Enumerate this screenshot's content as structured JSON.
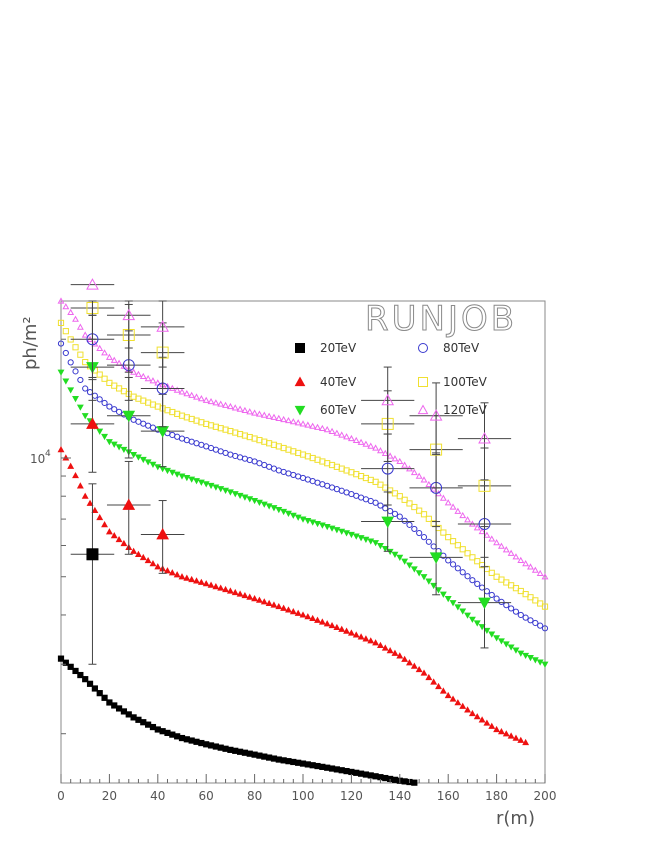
{
  "chart_data": {
    "type": "scatter",
    "title": "RUNJOB",
    "xlabel": "r(m)",
    "ylabel": "ph/m²",
    "xlim": [
      0,
      200
    ],
    "ylim": [
      1500,
      25000
    ],
    "ylog": true,
    "xticks": [
      0,
      20,
      40,
      60,
      80,
      100,
      120,
      140,
      160,
      180,
      200
    ],
    "ytick_label": {
      "base": "10",
      "exp": "4"
    },
    "legend": [
      {
        "name": "20TeV",
        "marker": "square-filled",
        "color": "#000000"
      },
      {
        "name": "80TeV",
        "marker": "circle-open",
        "color": "#3a3acf"
      },
      {
        "name": "40TeV",
        "marker": "triangle-up-filled",
        "color": "#ee1111"
      },
      {
        "name": "100TeV",
        "marker": "square-open",
        "color": "#f0e030"
      },
      {
        "name": "60TeV",
        "marker": "triangle-down-filled",
        "color": "#22dd22"
      },
      {
        "name": "120TeV",
        "marker": "triangle-up-open",
        "color": "#ee66ee"
      }
    ],
    "series": [
      {
        "name": "20TeV",
        "curve": [
          [
            0,
            3100
          ],
          [
            10,
            2750
          ],
          [
            20,
            2400
          ],
          [
            30,
            2200
          ],
          [
            40,
            2050
          ],
          [
            50,
            1950
          ],
          [
            60,
            1880
          ],
          [
            70,
            1820
          ],
          [
            80,
            1770
          ],
          [
            90,
            1720
          ],
          [
            100,
            1680
          ],
          [
            110,
            1640
          ],
          [
            120,
            1600
          ],
          [
            130,
            1560
          ],
          [
            140,
            1520
          ],
          [
            147,
            1500
          ]
        ],
        "curve_end": 147,
        "points": [
          {
            "x": 13,
            "y": 5700,
            "xerr": 9,
            "ylo": 3000,
            "yhi": 8600
          }
        ]
      },
      {
        "name": "40TeV",
        "curve": [
          [
            0,
            10500
          ],
          [
            5,
            9300
          ],
          [
            10,
            8000
          ],
          [
            20,
            6500
          ],
          [
            30,
            5800
          ],
          [
            40,
            5300
          ],
          [
            50,
            5000
          ],
          [
            60,
            4800
          ],
          [
            70,
            4600
          ],
          [
            80,
            4400
          ],
          [
            90,
            4200
          ],
          [
            100,
            4000
          ],
          [
            110,
            3800
          ],
          [
            120,
            3600
          ],
          [
            130,
            3400
          ],
          [
            140,
            3150
          ],
          [
            150,
            2850
          ],
          [
            160,
            2500
          ],
          [
            170,
            2250
          ],
          [
            180,
            2050
          ],
          [
            192,
            1900
          ]
        ],
        "curve_end": 192,
        "points": [
          {
            "x": 13,
            "y": 12200,
            "xerr": 9,
            "ylo": 9200,
            "yhi": 15800
          },
          {
            "x": 28,
            "y": 7600,
            "xerr": 9,
            "ylo": 5700,
            "yhi": 9800
          },
          {
            "x": 42,
            "y": 6400,
            "xerr": 9,
            "ylo": 5100,
            "yhi": 7800
          }
        ]
      },
      {
        "name": "60TeV",
        "curve": [
          [
            0,
            16500
          ],
          [
            5,
            14500
          ],
          [
            10,
            12800
          ],
          [
            20,
            11000
          ],
          [
            30,
            10200
          ],
          [
            40,
            9500
          ],
          [
            50,
            9000
          ],
          [
            60,
            8600
          ],
          [
            70,
            8200
          ],
          [
            80,
            7800
          ],
          [
            90,
            7400
          ],
          [
            100,
            7000
          ],
          [
            110,
            6700
          ],
          [
            120,
            6400
          ],
          [
            130,
            6100
          ],
          [
            140,
            5600
          ],
          [
            150,
            5000
          ],
          [
            160,
            4400
          ],
          [
            170,
            3900
          ],
          [
            180,
            3500
          ],
          [
            190,
            3200
          ],
          [
            200,
            3000
          ]
        ],
        "curve_end": 200,
        "points": [
          {
            "x": 13,
            "y": 17000,
            "xerr": 9,
            "ylo": 14000,
            "yhi": 23000
          },
          {
            "x": 28,
            "y": 12800,
            "xerr": 9,
            "ylo": 10000,
            "yhi": 16000
          },
          {
            "x": 42,
            "y": 11700,
            "xerr": 9,
            "ylo": 9500,
            "yhi": 14500
          },
          {
            "x": 135,
            "y": 6900,
            "xerr": 11,
            "ylo": 5800,
            "yhi": 8200
          },
          {
            "x": 155,
            "y": 5600,
            "xerr": 11,
            "ylo": 4500,
            "yhi": 6900
          },
          {
            "x": 175,
            "y": 4300,
            "xerr": 11,
            "ylo": 3300,
            "yhi": 5600
          }
        ]
      },
      {
        "name": "80TeV",
        "curve": [
          [
            0,
            19500
          ],
          [
            5,
            17000
          ],
          [
            10,
            15000
          ],
          [
            20,
            13500
          ],
          [
            30,
            12500
          ],
          [
            40,
            11800
          ],
          [
            50,
            11200
          ],
          [
            60,
            10700
          ],
          [
            70,
            10200
          ],
          [
            80,
            9800
          ],
          [
            90,
            9300
          ],
          [
            100,
            8900
          ],
          [
            110,
            8500
          ],
          [
            120,
            8100
          ],
          [
            130,
            7700
          ],
          [
            140,
            7100
          ],
          [
            150,
            6300
          ],
          [
            160,
            5500
          ],
          [
            170,
            4900
          ],
          [
            180,
            4400
          ],
          [
            190,
            4000
          ],
          [
            200,
            3700
          ]
        ],
        "curve_end": 200,
        "points": [
          {
            "x": 13,
            "y": 20000,
            "xerr": 9,
            "ylo": 16000,
            "yhi": 24000
          },
          {
            "x": 28,
            "y": 17200,
            "xerr": 9,
            "ylo": 14000,
            "yhi": 21000
          },
          {
            "x": 42,
            "y": 15000,
            "xerr": 9,
            "ylo": 12000,
            "yhi": 18000
          },
          {
            "x": 135,
            "y": 9400,
            "xerr": 11,
            "ylo": 7600,
            "yhi": 11500
          },
          {
            "x": 155,
            "y": 8400,
            "xerr": 11,
            "ylo": 6700,
            "yhi": 10300
          },
          {
            "x": 175,
            "y": 6800,
            "xerr": 11,
            "ylo": 5300,
            "yhi": 8500
          }
        ]
      },
      {
        "name": "100TeV",
        "curve": [
          [
            0,
            22000
          ],
          [
            5,
            19500
          ],
          [
            10,
            17500
          ],
          [
            20,
            15500
          ],
          [
            30,
            14300
          ],
          [
            40,
            13500
          ],
          [
            50,
            12800
          ],
          [
            60,
            12200
          ],
          [
            70,
            11700
          ],
          [
            80,
            11200
          ],
          [
            90,
            10700
          ],
          [
            100,
            10200
          ],
          [
            110,
            9700
          ],
          [
            120,
            9200
          ],
          [
            130,
            8700
          ],
          [
            140,
            8000
          ],
          [
            150,
            7200
          ],
          [
            160,
            6300
          ],
          [
            170,
            5600
          ],
          [
            180,
            5000
          ],
          [
            190,
            4600
          ],
          [
            200,
            4200
          ]
        ],
        "curve_end": 200,
        "points": [
          {
            "x": 13,
            "y": 24000,
            "xerr": 9,
            "ylo": 20000,
            "yhi": 25000
          },
          {
            "x": 28,
            "y": 20500,
            "xerr": 9,
            "ylo": 16500,
            "yhi": 24500
          },
          {
            "x": 42,
            "y": 18500,
            "xerr": 9,
            "ylo": 15000,
            "yhi": 22000
          },
          {
            "x": 135,
            "y": 12200,
            "xerr": 11,
            "ylo": 9800,
            "yhi": 14800
          },
          {
            "x": 155,
            "y": 10500,
            "xerr": 11,
            "ylo": 8400,
            "yhi": 12800
          },
          {
            "x": 175,
            "y": 8500,
            "xerr": 11,
            "ylo": 6700,
            "yhi": 10600
          }
        ]
      },
      {
        "name": "120TeV",
        "curve": [
          [
            0,
            25000
          ],
          [
            5,
            23000
          ],
          [
            10,
            20500
          ],
          [
            20,
            18000
          ],
          [
            30,
            16500
          ],
          [
            40,
            15500
          ],
          [
            50,
            14700
          ],
          [
            60,
            14000
          ],
          [
            70,
            13500
          ],
          [
            80,
            13000
          ],
          [
            90,
            12600
          ],
          [
            100,
            12200
          ],
          [
            110,
            11800
          ],
          [
            120,
            11200
          ],
          [
            130,
            10600
          ],
          [
            140,
            9800
          ],
          [
            150,
            8800
          ],
          [
            160,
            7700
          ],
          [
            170,
            6800
          ],
          [
            180,
            6100
          ],
          [
            190,
            5500
          ],
          [
            200,
            5000
          ]
        ],
        "curve_end": 200,
        "points": [
          {
            "x": 13,
            "y": 27500,
            "xerr": 9,
            "ylo": 23000,
            "yhi": 30000
          },
          {
            "x": 28,
            "y": 23000,
            "xerr": 9,
            "ylo": 19000,
            "yhi": 27000
          },
          {
            "x": 42,
            "y": 21500,
            "xerr": 9,
            "ylo": 17000,
            "yhi": 26000
          },
          {
            "x": 135,
            "y": 14000,
            "xerr": 11,
            "ylo": 11500,
            "yhi": 17000
          },
          {
            "x": 155,
            "y": 12800,
            "xerr": 11,
            "ylo": 10200,
            "yhi": 15500
          },
          {
            "x": 175,
            "y": 11200,
            "xerr": 11,
            "ylo": 8800,
            "yhi": 13800
          }
        ]
      }
    ]
  }
}
